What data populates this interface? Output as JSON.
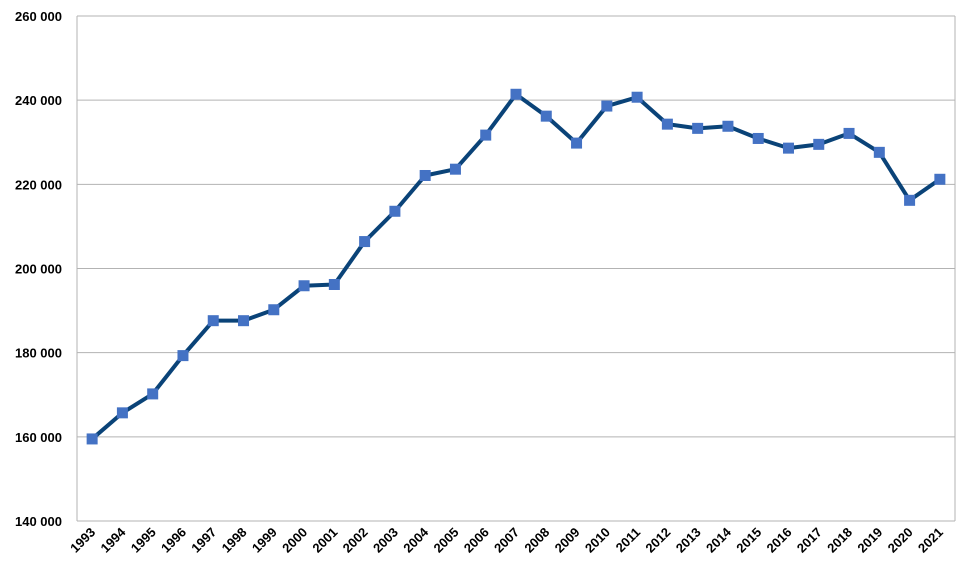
{
  "chart_data": {
    "type": "line",
    "categories": [
      "1993",
      "1994",
      "1995",
      "1996",
      "1997",
      "1998",
      "1999",
      "2000",
      "2001",
      "2002",
      "2003",
      "2004",
      "2005",
      "2006",
      "2007",
      "2008",
      "2009",
      "2010",
      "2011",
      "2012",
      "2013",
      "2014",
      "2015",
      "2016",
      "2017",
      "2018",
      "2019",
      "2020",
      "2021"
    ],
    "series": [
      {
        "line_color": "#0a4378",
        "color": "#4472c4",
        "values": [
          159500,
          165700,
          170200,
          179300,
          187600,
          187600,
          190200,
          195900,
          196200,
          206400,
          213600,
          222100,
          223600,
          231700,
          241400,
          236200,
          229800,
          238600,
          240700,
          234300,
          233300,
          233800,
          230900,
          228600,
          229500,
          232100,
          227600,
          216200,
          221200
        ]
      }
    ],
    "ylim": [
      140000,
      260000
    ],
    "yticks": [
      {
        "value": 140000,
        "label": "140 000"
      },
      {
        "value": 160000,
        "label": "160 000"
      },
      {
        "value": 180000,
        "label": "180 000"
      },
      {
        "value": 200000,
        "label": "200 000"
      },
      {
        "value": 220000,
        "label": "220 000"
      },
      {
        "value": 240000,
        "label": "240 000"
      },
      {
        "value": 260000,
        "label": "260 000"
      }
    ],
    "grid": true
  }
}
